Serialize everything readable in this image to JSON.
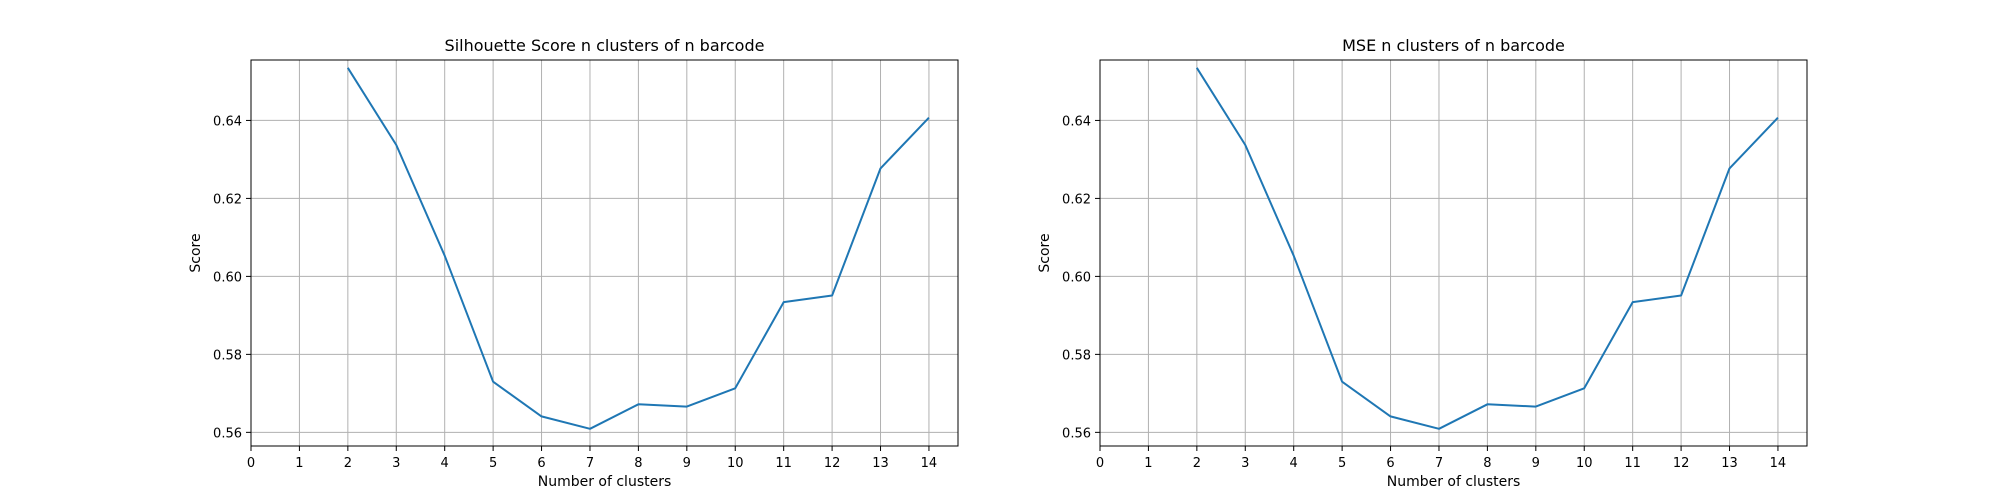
{
  "figure": {
    "background": "#ffffff"
  },
  "chart_data": [
    {
      "type": "line",
      "title": "Silhouette Score n clusters of n barcode",
      "xlabel": "Number of clusters",
      "ylabel": "Score",
      "xlim": [
        0,
        14.6
      ],
      "ylim": [
        0.5565,
        0.6555
      ],
      "xticks": [
        0,
        1,
        2,
        3,
        4,
        5,
        6,
        7,
        8,
        9,
        10,
        11,
        12,
        13,
        14
      ],
      "yticks": [
        0.56,
        0.58,
        0.6,
        0.62,
        0.64
      ],
      "ytick_labels": [
        "0.56",
        "0.58",
        "0.60",
        "0.62",
        "0.64"
      ],
      "grid": true,
      "line_color": "#1f77b4",
      "x": [
        2,
        3,
        4,
        5,
        6,
        7,
        8,
        9,
        10,
        11,
        12,
        13,
        14
      ],
      "y": [
        0.6535,
        0.6337,
        0.6053,
        0.573,
        0.5641,
        0.5609,
        0.5672,
        0.5666,
        0.5713,
        0.5934,
        0.5951,
        0.6277,
        0.6407
      ]
    },
    {
      "type": "line",
      "title": "MSE n clusters of n barcode",
      "xlabel": "Number of clusters",
      "ylabel": "Score",
      "xlim": [
        0,
        14.6
      ],
      "ylim": [
        0.5565,
        0.6555
      ],
      "xticks": [
        0,
        1,
        2,
        3,
        4,
        5,
        6,
        7,
        8,
        9,
        10,
        11,
        12,
        13,
        14
      ],
      "yticks": [
        0.56,
        0.58,
        0.6,
        0.62,
        0.64
      ],
      "ytick_labels": [
        "0.56",
        "0.58",
        "0.60",
        "0.62",
        "0.64"
      ],
      "grid": true,
      "line_color": "#1f77b4",
      "x": [
        2,
        3,
        4,
        5,
        6,
        7,
        8,
        9,
        10,
        11,
        12,
        13,
        14
      ],
      "y": [
        0.6535,
        0.6337,
        0.6053,
        0.573,
        0.5641,
        0.5609,
        0.5672,
        0.5666,
        0.5713,
        0.5934,
        0.5951,
        0.6277,
        0.6407
      ]
    }
  ]
}
